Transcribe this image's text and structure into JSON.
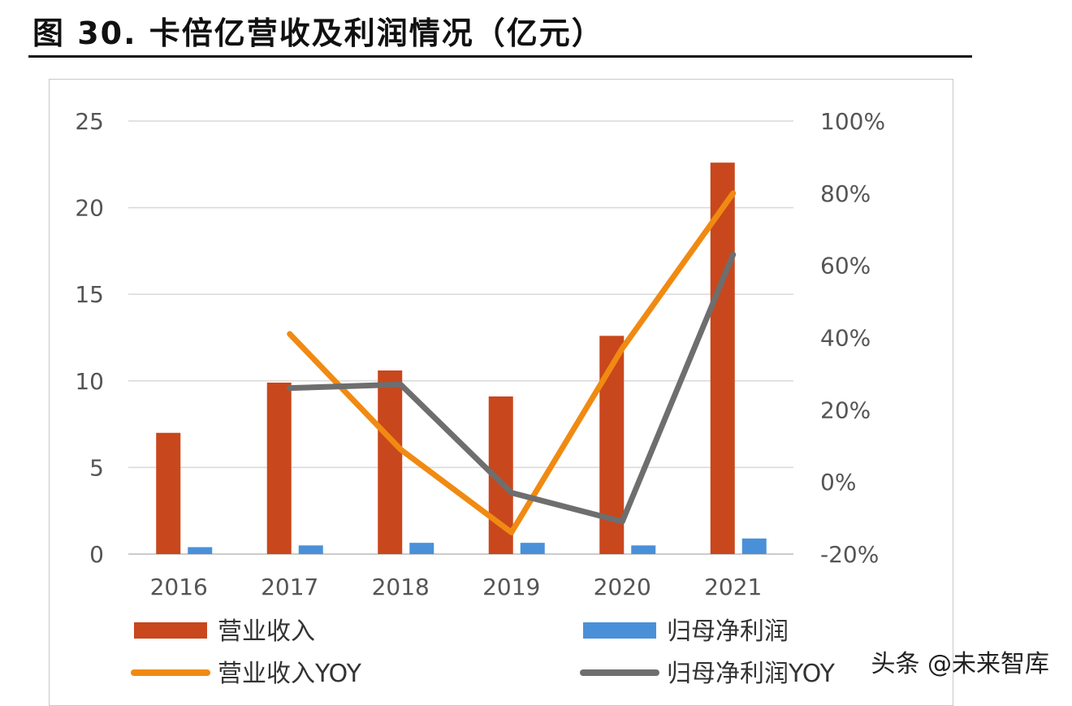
{
  "title": "图 30. 卡倍亿营收及利润情况（亿元）",
  "watermark": "头条 @未来智库",
  "chart_data": {
    "type": "bar",
    "title": "图 30. 卡倍亿营收及利润情况（亿元）",
    "categories": [
      "2016",
      "2017",
      "2018",
      "2019",
      "2020",
      "2021"
    ],
    "ylim": [
      0,
      25
    ],
    "y_ticks": [
      "0",
      "5",
      "10",
      "15",
      "20",
      "25"
    ],
    "y2lim": [
      -20,
      100
    ],
    "y2_ticks": [
      "-20%",
      "0%",
      "20%",
      "40%",
      "60%",
      "80%",
      "100%"
    ],
    "grid": true,
    "legend_position": "bottom",
    "series": [
      {
        "name": "营业收入",
        "kind": "bar",
        "axis": "left",
        "color": "#C9471C",
        "values": [
          7.0,
          9.9,
          10.6,
          9.1,
          12.6,
          22.6
        ]
      },
      {
        "name": "归母净利润",
        "kind": "bar",
        "axis": "left",
        "color": "#4A90D9",
        "values": [
          0.4,
          0.5,
          0.65,
          0.65,
          0.5,
          0.9
        ]
      },
      {
        "name": "营业收入YOY",
        "kind": "line",
        "axis": "right",
        "color": "#F08A12",
        "values": [
          null,
          41,
          9,
          -14,
          37,
          80
        ]
      },
      {
        "name": "归母净利润YOY",
        "kind": "line",
        "axis": "right",
        "color": "#6E6E6E",
        "values": [
          null,
          26,
          27,
          -3,
          -11,
          63
        ]
      }
    ]
  }
}
